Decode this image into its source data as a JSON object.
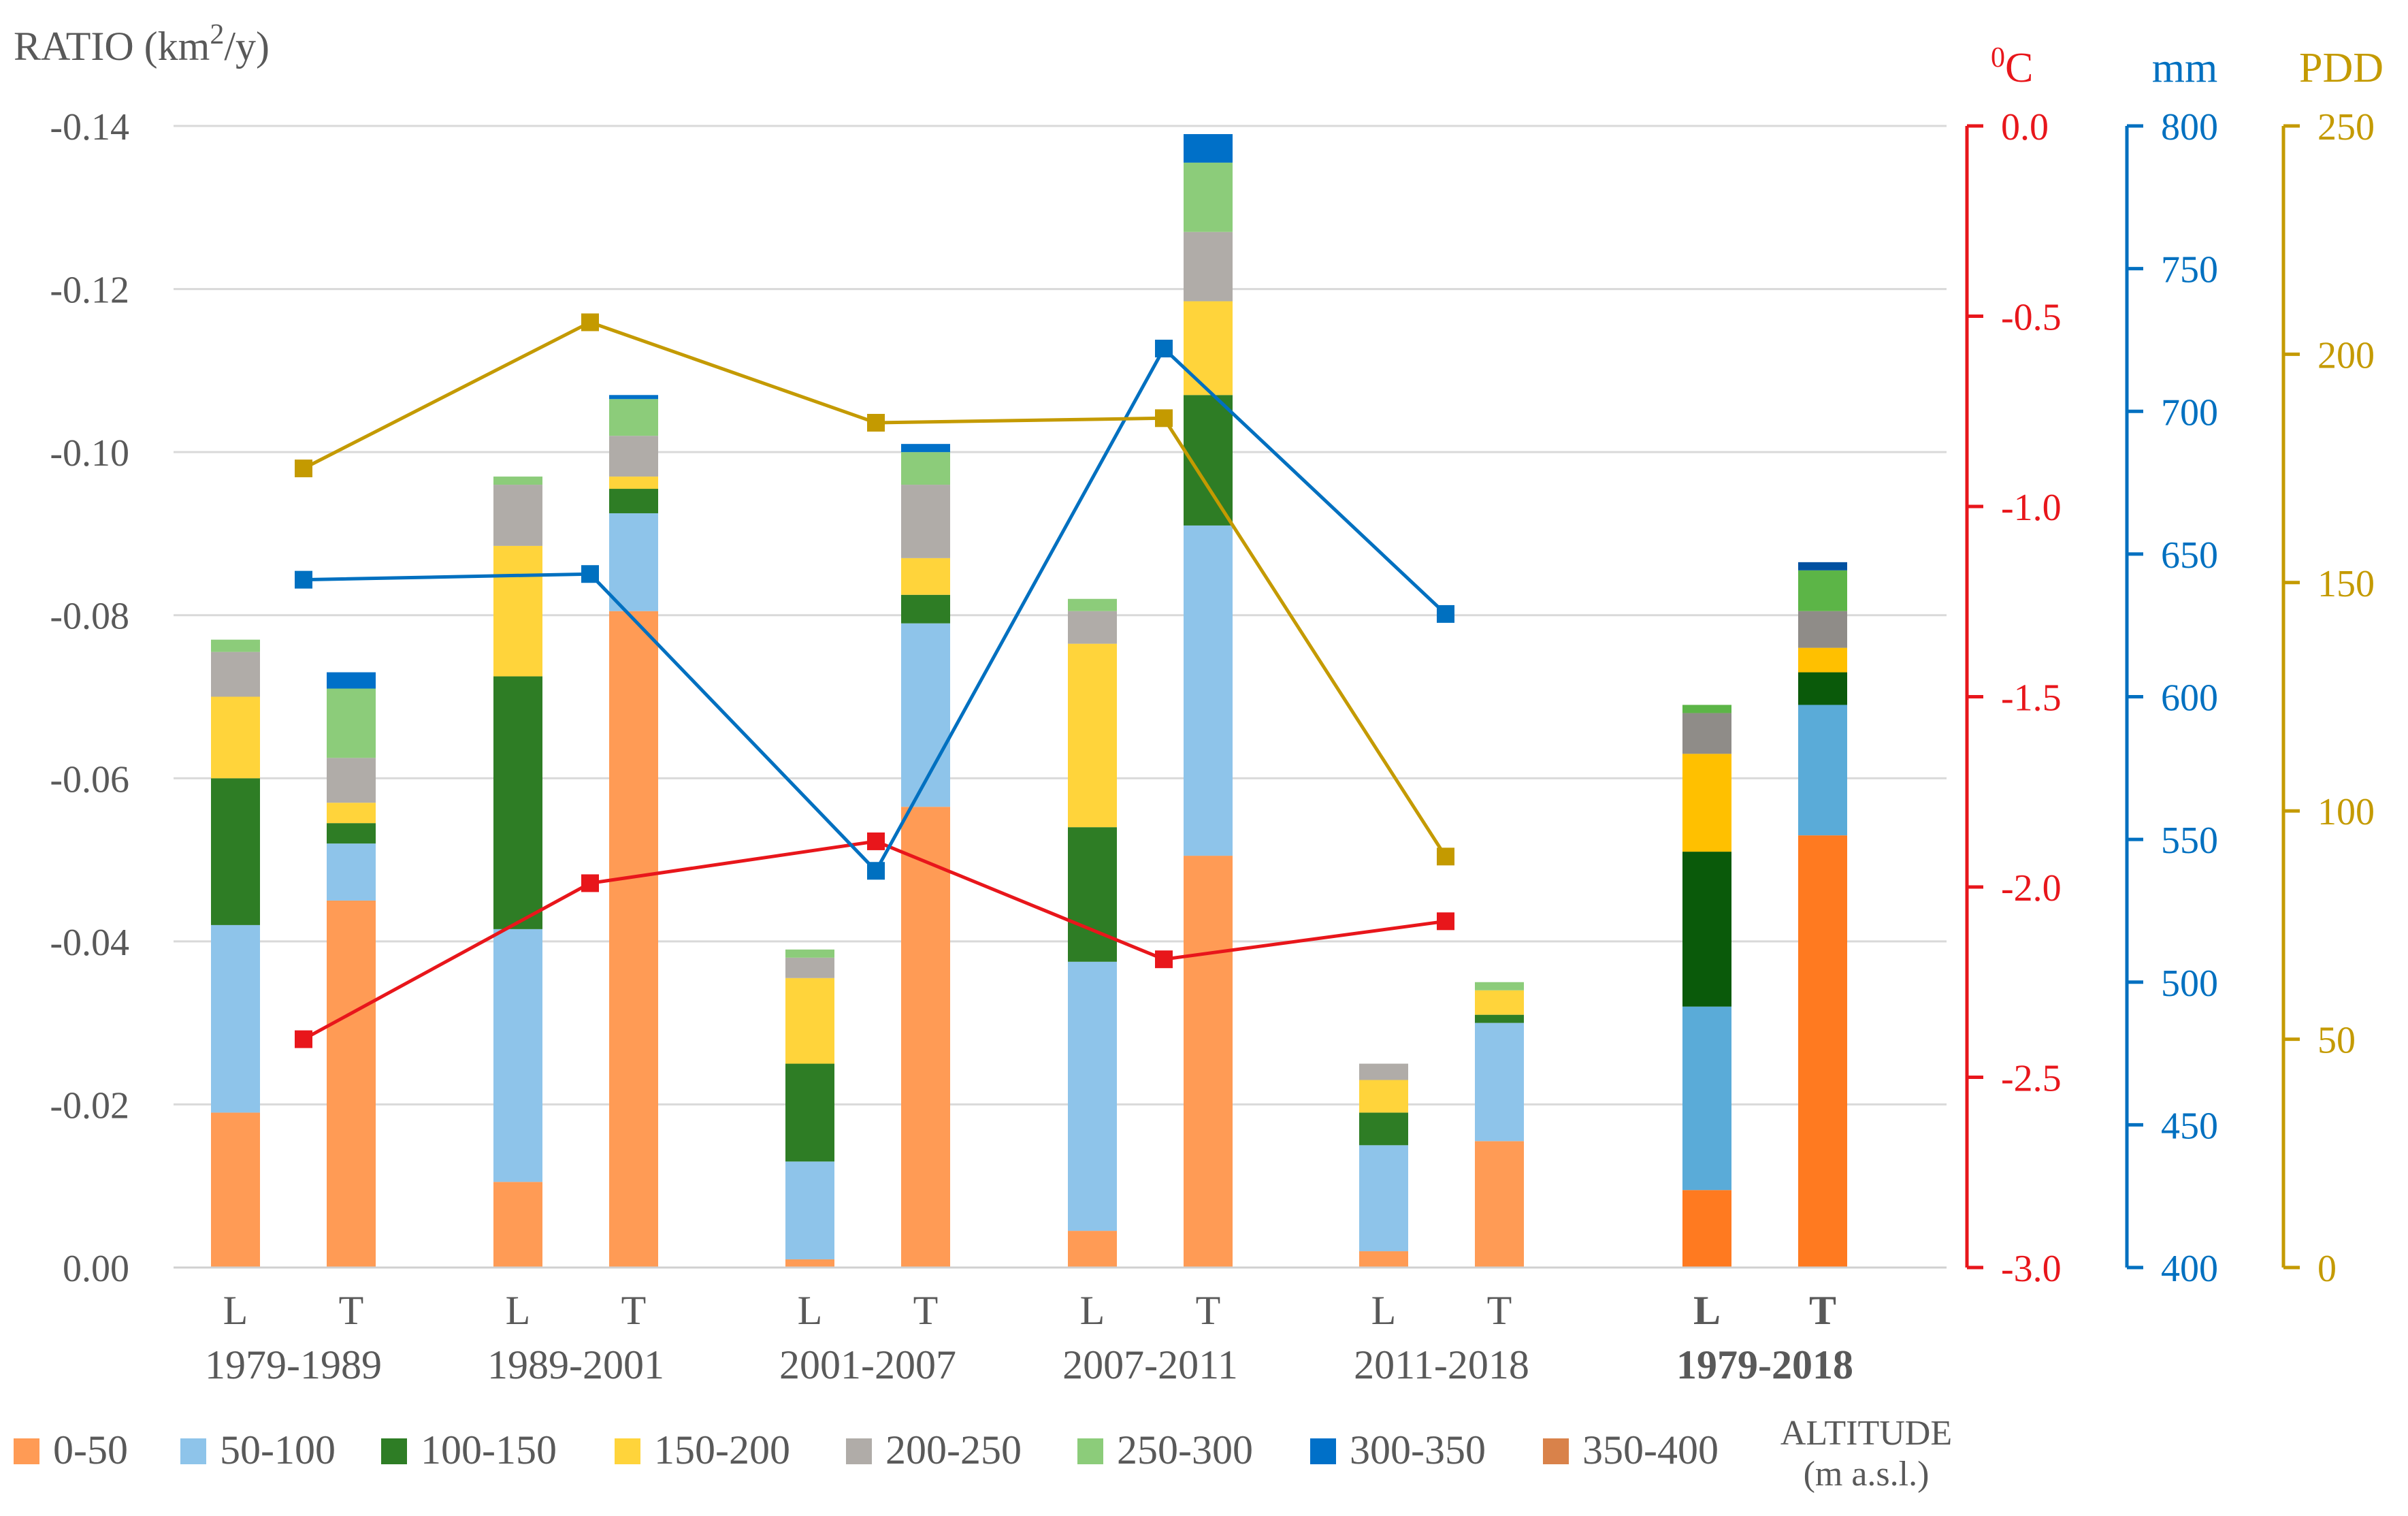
{
  "chart_data": {
    "type": "bar",
    "stacked": true,
    "title": "",
    "ylabel_prefix": "RATIO (km",
    "ylabel_sup": "2",
    "ylabel_suffix": "/y)",
    "ylim": [
      0,
      -0.14
    ],
    "yticks": [
      0,
      -0.02,
      -0.04,
      -0.06,
      -0.08,
      -0.1,
      -0.12,
      -0.14
    ],
    "ytick_labels": [
      "0.00",
      "-0.02",
      "-0.04",
      "-0.06",
      "-0.08",
      "-0.10",
      "-0.12",
      "-0.14"
    ],
    "right_axes": [
      {
        "key": "temp",
        "label_sup": "0",
        "label": "C",
        "color": "#e8161b",
        "range": [
          -3.0,
          0.0
        ],
        "ticks": [
          -3.0,
          -2.5,
          -2.0,
          -1.5,
          -1.0,
          -0.5,
          0.0
        ],
        "tick_labels": [
          "-3.0",
          "-2.5",
          "-2.0",
          "-1.5",
          "-1.0",
          "-0.5",
          "0.0"
        ]
      },
      {
        "key": "precip",
        "label": "mm",
        "color": "#0070c0",
        "range": [
          400,
          800
        ],
        "ticks": [
          400,
          450,
          500,
          550,
          600,
          650,
          700,
          750,
          800
        ],
        "tick_labels": [
          "400",
          "450",
          "500",
          "550",
          "600",
          "650",
          "700",
          "750",
          "800"
        ]
      },
      {
        "key": "pdd",
        "label": "PDD",
        "color": "#c49a00",
        "range": [
          0,
          250
        ],
        "ticks": [
          0,
          50,
          100,
          150,
          200,
          250
        ],
        "tick_labels": [
          "0",
          "50",
          "100",
          "150",
          "200",
          "250"
        ]
      }
    ],
    "groups": [
      {
        "label": "1979-1989",
        "bold": false
      },
      {
        "label": "1989-2001",
        "bold": false
      },
      {
        "label": "2001-2007",
        "bold": false
      },
      {
        "label": "2007-2011",
        "bold": false
      },
      {
        "label": "2011-2018",
        "bold": false
      },
      {
        "label": "1979-2018",
        "bold": true
      }
    ],
    "bar_labels": [
      "L",
      "T"
    ],
    "series": [
      {
        "name": "0-50",
        "color": "#ff9b55",
        "color_total": "#ff7a20",
        "values": [
          -0.019,
          -0.045,
          -0.0105,
          -0.0805,
          -0.001,
          -0.0565,
          -0.0045,
          -0.0505,
          -0.002,
          -0.0155,
          -0.0095,
          -0.053
        ]
      },
      {
        "name": "50-100",
        "color": "#8ec4ea",
        "color_total": "#5aabd8",
        "values": [
          -0.023,
          -0.007,
          -0.031,
          -0.012,
          -0.012,
          -0.0225,
          -0.033,
          -0.0405,
          -0.013,
          -0.0145,
          -0.0225,
          -0.016
        ]
      },
      {
        "name": "100-150",
        "color": "#2e7d25",
        "color_total": "#0a5a0a",
        "values": [
          -0.018,
          -0.0025,
          -0.031,
          -0.003,
          -0.012,
          -0.0035,
          -0.0165,
          -0.016,
          -0.004,
          -0.001,
          -0.019,
          -0.004
        ]
      },
      {
        "name": "150-200",
        "color": "#ffd43b",
        "color_total": "#ffc000",
        "values": [
          -0.01,
          -0.0025,
          -0.016,
          -0.0015,
          -0.0105,
          -0.0045,
          -0.0225,
          -0.0115,
          -0.004,
          -0.003,
          -0.012,
          -0.003
        ]
      },
      {
        "name": "200-250",
        "color": "#b0aca8",
        "color_total": "#8f8c88",
        "values": [
          -0.0055,
          -0.0055,
          -0.0075,
          -0.005,
          -0.0025,
          -0.009,
          -0.004,
          -0.0085,
          -0.002,
          0,
          -0.005,
          -0.0045
        ]
      },
      {
        "name": "250-300",
        "color": "#8ccc7a",
        "color_total": "#5cb547",
        "values": [
          -0.0015,
          -0.0085,
          -0.001,
          -0.0045,
          -0.001,
          -0.004,
          -0.0015,
          -0.0085,
          0,
          -0.001,
          -0.001,
          -0.005
        ]
      },
      {
        "name": "300-350",
        "color": "#0070c8",
        "color_total": "#0050a0",
        "values": [
          0,
          -0.002,
          0,
          -0.0005,
          0,
          -0.001,
          0,
          -0.0035,
          0,
          0,
          0,
          -0.001
        ]
      },
      {
        "name": "350-400",
        "color": "#d9824a",
        "color_total": "#d9824a",
        "values": [
          0,
          0,
          0,
          0,
          0,
          0,
          0,
          0,
          0,
          0,
          0,
          0
        ]
      }
    ],
    "lines": [
      {
        "name": "Temperature",
        "axis": "temp",
        "color": "#e8161b",
        "group_index": [
          0,
          1,
          2,
          3,
          4
        ],
        "values": [
          -2.4,
          -1.99,
          -1.88,
          -2.19,
          -2.09
        ]
      },
      {
        "name": "Precipitation",
        "axis": "precip",
        "color": "#0070c0",
        "group_index": [
          0,
          1,
          2,
          3,
          4
        ],
        "values": [
          641,
          643,
          539,
          722,
          629
        ]
      },
      {
        "name": "PDD",
        "axis": "pdd",
        "color": "#c49a00",
        "group_index": [
          0,
          1,
          2,
          3,
          4
        ],
        "values": [
          175,
          207,
          185,
          186,
          90
        ]
      }
    ],
    "legend_position": "bottom",
    "legend_note_line1": "ALTITUDE",
    "legend_note_line2": "(m a.s.l.)"
  }
}
